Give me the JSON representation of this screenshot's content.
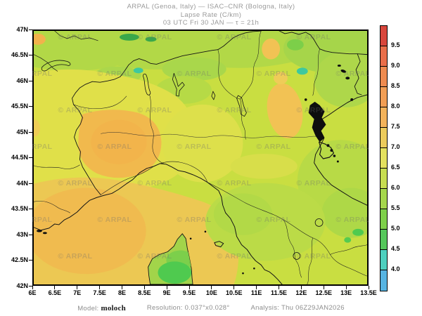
{
  "header": {
    "line1": "ARPAL (Genoa, Italy)  —  ISAC–CNR (Bologna, Italy)",
    "line2": "Lapse Rate (C/km)",
    "line3": "03 UTC Fri 30 JAN  —  τ = 21h"
  },
  "map_axes": {
    "lat_labels": [
      "47N",
      "46.5N",
      "46N",
      "45.5N",
      "45N",
      "44.5N",
      "44N",
      "43.5N",
      "43N",
      "42.5N",
      "42N"
    ],
    "lon_labels": [
      "6E",
      "6.5E",
      "7E",
      "7.5E",
      "8E",
      "8.5E",
      "9E",
      "9.5E",
      "10E",
      "10.5E",
      "11E",
      "11.5E",
      "12E",
      "12.5E",
      "13E",
      "13.5E"
    ]
  },
  "watermark": {
    "text": "© ARPAL"
  },
  "colorbar": {
    "tick_labels": [
      "9.5",
      "9.0",
      "8.5",
      "8.0",
      "7.5",
      "7.0",
      "6.5",
      "6.0",
      "5.5",
      "5.0",
      "4.5",
      "4.0"
    ],
    "segment_colors": [
      "#d8463c",
      "#e96e4a",
      "#ee8b50",
      "#f19e55",
      "#f3b35b",
      "#eccb5c",
      "#e4e15f",
      "#c7dd51",
      "#a5d74c",
      "#7ed04a",
      "#55c75b",
      "#4ed0bf",
      "#57b4e2"
    ]
  },
  "palette": {
    "map_base": "#c9de41",
    "alps_green": "#b2d847",
    "green_patch": "#a6d54a",
    "yellow_zone": "#e0e049",
    "sea_orange": "#ecc853",
    "orange_core": "#f0ba4e",
    "bright_green": "#4fca4f",
    "teal_spot": "#3ec89e",
    "border_line": "#141414"
  },
  "footer": {
    "model_label": "Model:",
    "model_value": "moloch",
    "resolution_label": "Resolution:",
    "resolution_value": "0.037°x0.028°",
    "analysis_label": "Analysis:",
    "analysis_value": "Thu 06Z29JAN2026"
  }
}
